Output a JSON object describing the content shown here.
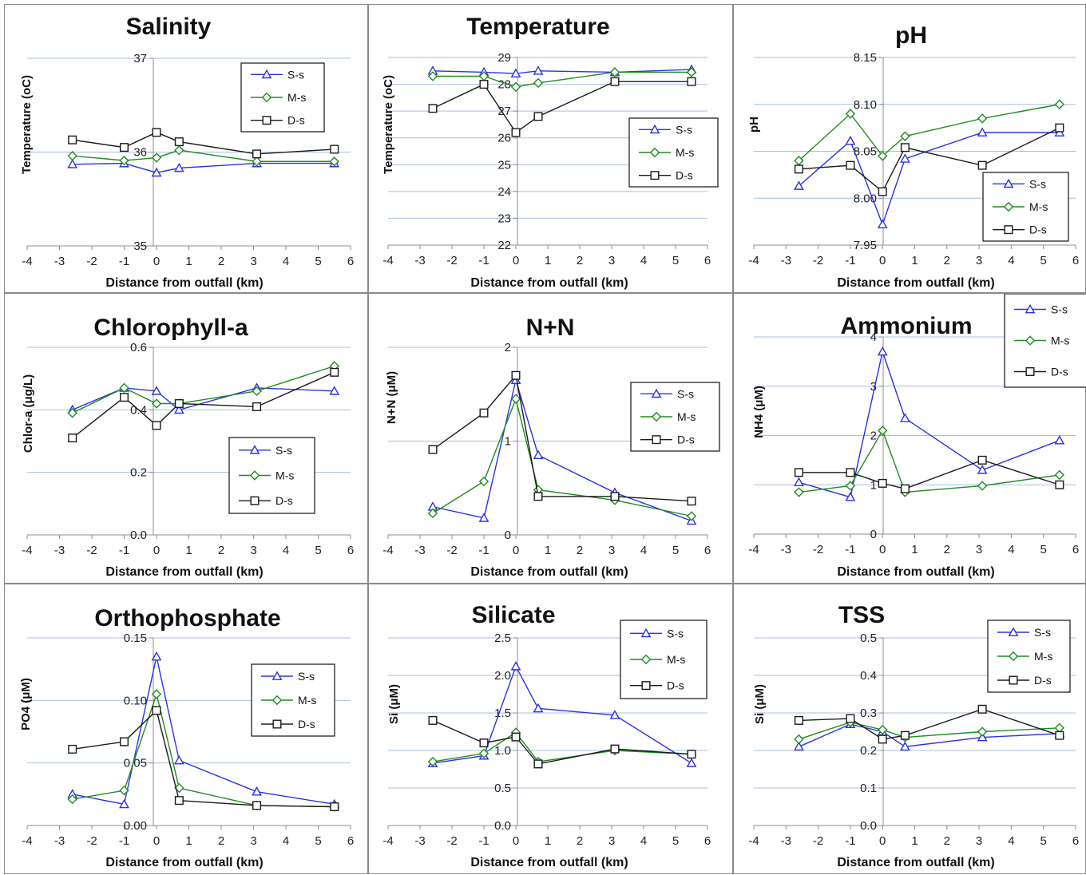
{
  "colors": {
    "S-s": "#2a32e6",
    "M-s": "#1f8c1f",
    "D-s": "#1a1a1a",
    "grid": "#a9bfe0",
    "axis": "#8c8c8c"
  },
  "chart_data": [
    {
      "type": "line",
      "title": "Salinity",
      "ylabel": "Temperature (oC)",
      "xlabel": "Distance from outfall (km)",
      "xlim": [
        -4,
        6
      ],
      "xticks": [
        -4,
        -3,
        -2,
        -1,
        0,
        1,
        2,
        3,
        4,
        5,
        6
      ],
      "ylim": [
        35,
        37
      ],
      "yticks": [
        35,
        36,
        37
      ],
      "ytick_labels": [
        "35",
        "36",
        "37"
      ],
      "grid": true,
      "legend": "top-right",
      "series": [
        {
          "name": "S-s",
          "x": [
            -2.6,
            -1,
            0,
            0.7,
            3.1,
            5.5
          ],
          "y": [
            35.87,
            35.88,
            35.78,
            35.83,
            35.88,
            35.88
          ]
        },
        {
          "name": "M-s",
          "x": [
            -2.6,
            -1,
            0,
            0.7,
            3.1,
            5.5
          ],
          "y": [
            35.96,
            35.91,
            35.94,
            36.02,
            35.9,
            35.9
          ]
        },
        {
          "name": "D-s",
          "x": [
            -2.6,
            -1,
            0,
            0.7,
            3.1,
            5.5
          ],
          "y": [
            36.13,
            36.05,
            36.21,
            36.11,
            35.98,
            36.03
          ]
        }
      ]
    },
    {
      "type": "line",
      "title": "Temperature",
      "ylabel": "Temperature (oC)",
      "xlabel": "Distance from outfall (km)",
      "xlim": [
        -4,
        6
      ],
      "xticks": [
        -4,
        -3,
        -2,
        -1,
        0,
        1,
        2,
        3,
        4,
        5,
        6
      ],
      "ylim": [
        22,
        29
      ],
      "yticks": [
        22,
        23,
        24,
        25,
        26,
        27,
        28,
        29
      ],
      "ytick_labels": [
        "22",
        "23",
        "24",
        "25",
        "26",
        "27",
        "28",
        "29"
      ],
      "grid": true,
      "legend": "right",
      "series": [
        {
          "name": "S-s",
          "x": [
            -2.6,
            -1,
            0,
            0.7,
            3.1,
            5.5
          ],
          "y": [
            28.5,
            28.45,
            28.4,
            28.5,
            28.45,
            28.55
          ]
        },
        {
          "name": "M-s",
          "x": [
            -2.6,
            -1,
            0,
            0.7,
            3.1,
            5.5
          ],
          "y": [
            28.3,
            28.3,
            27.9,
            28.05,
            28.45,
            28.45
          ]
        },
        {
          "name": "D-s",
          "x": [
            -2.6,
            -1,
            0,
            0.7,
            3.1,
            5.5
          ],
          "y": [
            27.1,
            28.0,
            26.2,
            26.8,
            28.1,
            28.1
          ]
        }
      ]
    },
    {
      "type": "line",
      "title": "pH",
      "ylabel": "pH",
      "xlabel": "Distance from outfall (km)",
      "xlim": [
        -4,
        6
      ],
      "xticks": [
        -4,
        -3,
        -2,
        -1,
        0,
        1,
        2,
        3,
        4,
        5,
        6
      ],
      "ylim": [
        7.95,
        8.15
      ],
      "yticks": [
        7.95,
        8.0,
        8.05,
        8.1,
        8.15
      ],
      "ytick_labels": [
        "7.95",
        "8.00",
        "8.05",
        "8.10",
        "8.15"
      ],
      "grid": true,
      "legend": "bottom-right",
      "series": [
        {
          "name": "S-s",
          "x": [
            -2.6,
            -1,
            0,
            0.7,
            3.1,
            5.5
          ],
          "y": [
            8.013,
            8.061,
            7.972,
            8.042,
            8.07,
            8.07
          ]
        },
        {
          "name": "M-s",
          "x": [
            -2.6,
            -1,
            0,
            0.7,
            3.1,
            5.5
          ],
          "y": [
            8.04,
            8.09,
            8.045,
            8.066,
            8.085,
            8.1
          ]
        },
        {
          "name": "D-s",
          "x": [
            -2.6,
            -1,
            0,
            0.7,
            3.1,
            5.5
          ],
          "y": [
            8.031,
            8.035,
            8.007,
            8.054,
            8.035,
            8.075
          ]
        }
      ]
    },
    {
      "type": "line",
      "title": "Chlorophyll-a",
      "ylabel": "Chlor-a (μg/L)",
      "xlabel": "Distance from outfall (km)",
      "xlim": [
        -4,
        6
      ],
      "xticks": [
        -4,
        -3,
        -2,
        -1,
        0,
        1,
        2,
        3,
        4,
        5,
        6
      ],
      "ylim": [
        0,
        0.6
      ],
      "yticks": [
        0,
        0.2,
        0.4,
        0.6
      ],
      "ytick_labels": [
        "0.0",
        "0.2",
        "0.4",
        "0.6"
      ],
      "grid": true,
      "legend": "bottom-right",
      "series": [
        {
          "name": "S-s",
          "x": [
            -2.6,
            -1,
            0,
            0.7,
            3.1,
            5.5
          ],
          "y": [
            0.4,
            0.47,
            0.46,
            0.4,
            0.47,
            0.46
          ]
        },
        {
          "name": "M-s",
          "x": [
            -2.6,
            -1,
            0,
            0.7,
            3.1,
            5.5
          ],
          "y": [
            0.39,
            0.47,
            0.42,
            0.42,
            0.46,
            0.54
          ]
        },
        {
          "name": "D-s",
          "x": [
            -2.6,
            -1,
            0,
            0.7,
            3.1,
            5.5
          ],
          "y": [
            0.31,
            0.44,
            0.35,
            0.42,
            0.41,
            0.52
          ]
        }
      ]
    },
    {
      "type": "line",
      "title": "N+N",
      "ylabel": "N+N (μM)",
      "xlabel": "Distance from outfall (km)",
      "xlim": [
        -4,
        6
      ],
      "xticks": [
        -4,
        -3,
        -2,
        -1,
        0,
        1,
        2,
        3,
        4,
        5,
        6
      ],
      "ylim": [
        0,
        2
      ],
      "yticks": [
        0,
        1,
        2
      ],
      "ytick_labels": [
        "0",
        "1",
        "2"
      ],
      "grid": true,
      "legend": "right",
      "series": [
        {
          "name": "S-s",
          "x": [
            -2.6,
            -1,
            0,
            0.7,
            3.1,
            5.5
          ],
          "y": [
            0.3,
            0.18,
            1.65,
            0.85,
            0.45,
            0.15
          ]
        },
        {
          "name": "M-s",
          "x": [
            -2.6,
            -1,
            0,
            0.7,
            3.1,
            5.5
          ],
          "y": [
            0.23,
            0.57,
            1.45,
            0.48,
            0.37,
            0.2
          ]
        },
        {
          "name": "D-s",
          "x": [
            -2.6,
            -1,
            0,
            0.7,
            3.1,
            5.5
          ],
          "y": [
            0.91,
            1.3,
            1.7,
            0.41,
            0.41,
            0.36
          ]
        }
      ]
    },
    {
      "type": "line",
      "title": "Ammonium",
      "ylabel": "NH4 (μM)",
      "xlabel": "Distance from outfall (km)",
      "xlim": [
        -4,
        6
      ],
      "xticks": [
        -4,
        -3,
        -2,
        -1,
        0,
        1,
        2,
        3,
        4,
        5,
        6
      ],
      "ylim": [
        0,
        4
      ],
      "yticks": [
        0,
        1,
        2,
        3,
        4
      ],
      "ytick_labels": [
        "0",
        "1",
        "2",
        "3",
        "4"
      ],
      "grid": true,
      "legend": "outside-top-right",
      "series": [
        {
          "name": "S-s",
          "x": [
            -2.6,
            -1,
            0,
            0.7,
            3.1,
            5.5
          ],
          "y": [
            1.05,
            0.75,
            3.7,
            2.35,
            1.3,
            1.9
          ]
        },
        {
          "name": "M-s",
          "x": [
            -2.6,
            -1,
            0,
            0.7,
            3.1,
            5.5
          ],
          "y": [
            0.85,
            0.98,
            2.1,
            0.85,
            0.98,
            1.2
          ]
        },
        {
          "name": "D-s",
          "x": [
            -2.6,
            -1,
            0,
            0.7,
            3.1,
            5.5
          ],
          "y": [
            1.25,
            1.25,
            1.03,
            0.92,
            1.5,
            1.0
          ]
        }
      ]
    },
    {
      "type": "line",
      "title": "Orthophosphate",
      "ylabel": "PO4 (μM)",
      "xlabel": "Distance from outfall (km)",
      "xlim": [
        -4,
        6
      ],
      "xticks": [
        -4,
        -3,
        -2,
        -1,
        0,
        1,
        2,
        3,
        4,
        5,
        6
      ],
      "ylim": [
        0,
        0.15
      ],
      "yticks": [
        0,
        0.05,
        0.1,
        0.15
      ],
      "ytick_labels": [
        "0.00",
        "0.05",
        "0.10",
        "0.15"
      ],
      "grid": true,
      "legend": "top-right",
      "series": [
        {
          "name": "S-s",
          "x": [
            -2.6,
            -1,
            0,
            0.7,
            3.1,
            5.5
          ],
          "y": [
            0.025,
            0.017,
            0.135,
            0.052,
            0.027,
            0.017
          ]
        },
        {
          "name": "M-s",
          "x": [
            -2.6,
            -1,
            0,
            0.7,
            3.1,
            5.5
          ],
          "y": [
            0.021,
            0.028,
            0.105,
            0.03,
            0.016,
            0.015
          ]
        },
        {
          "name": "D-s",
          "x": [
            -2.6,
            -1,
            0,
            0.7,
            3.1,
            5.5
          ],
          "y": [
            0.061,
            0.067,
            0.092,
            0.02,
            0.016,
            0.015
          ]
        }
      ]
    },
    {
      "type": "line",
      "title": "Silicate",
      "ylabel": "Si (μM)",
      "xlabel": "Distance from outfall (km)",
      "xlim": [
        -4,
        6
      ],
      "xticks": [
        -4,
        -3,
        -2,
        -1,
        0,
        1,
        2,
        3,
        4,
        5,
        6
      ],
      "ylim": [
        0,
        2.5
      ],
      "yticks": [
        0,
        0.5,
        1,
        1.5,
        2,
        2.5
      ],
      "ytick_labels": [
        "0.0",
        "0.5",
        "1.0",
        "1.5",
        "2.0",
        "2.5"
      ],
      "grid": true,
      "legend": "top-right",
      "series": [
        {
          "name": "S-s",
          "x": [
            -2.6,
            -1,
            0,
            0.7,
            3.1,
            5.5
          ],
          "y": [
            0.83,
            0.93,
            2.12,
            1.56,
            1.47,
            0.83
          ]
        },
        {
          "name": "M-s",
          "x": [
            -2.6,
            -1,
            0,
            0.7,
            3.1,
            5.5
          ],
          "y": [
            0.85,
            0.96,
            1.24,
            0.85,
            1.0,
            0.95
          ]
        },
        {
          "name": "D-s",
          "x": [
            -2.6,
            -1,
            0,
            0.7,
            3.1,
            5.5
          ],
          "y": [
            1.4,
            1.1,
            1.18,
            0.82,
            1.02,
            0.95
          ]
        }
      ]
    },
    {
      "type": "line",
      "title": "TSS",
      "ylabel": "Si (μM)",
      "xlabel": "Distance from outfall (km)",
      "xlim": [
        -4,
        6
      ],
      "xticks": [
        -4,
        -3,
        -2,
        -1,
        0,
        1,
        2,
        3,
        4,
        5,
        6
      ],
      "ylim": [
        0,
        0.5
      ],
      "yticks": [
        0,
        0.1,
        0.2,
        0.3,
        0.4,
        0.5
      ],
      "ytick_labels": [
        "0.0",
        "0.1",
        "0.2",
        "0.3",
        "0.4",
        "0.5"
      ],
      "grid": true,
      "legend": "top-right",
      "series": [
        {
          "name": "S-s",
          "x": [
            -2.6,
            -1,
            0,
            0.7,
            3.1,
            5.5
          ],
          "y": [
            0.21,
            0.27,
            0.25,
            0.21,
            0.235,
            0.245
          ]
        },
        {
          "name": "M-s",
          "x": [
            -2.6,
            -1,
            0,
            0.7,
            3.1,
            5.5
          ],
          "y": [
            0.23,
            0.275,
            0.255,
            0.235,
            0.25,
            0.26
          ]
        },
        {
          "name": "D-s",
          "x": [
            -2.6,
            -1,
            0,
            0.7,
            3.1,
            5.5
          ],
          "y": [
            0.28,
            0.285,
            0.23,
            0.24,
            0.31,
            0.24
          ]
        }
      ]
    }
  ]
}
